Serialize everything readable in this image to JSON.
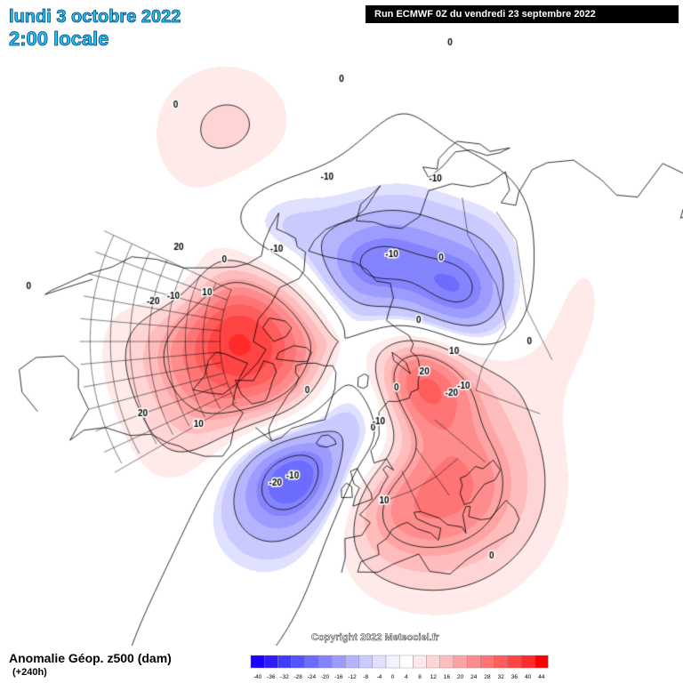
{
  "header": {
    "date": "lundi 3 octobre 2022",
    "local_time": "2:00 locale",
    "run": "Run ECMWF 0Z du vendredi 23 septembre 2022"
  },
  "footer": {
    "field": "Anomalie Géop. z500 (dam)",
    "lead_time": "(+240h)",
    "copyright": "Copyright 2022 Meteociel.fr"
  },
  "legend": {
    "ticks": [
      "-40",
      "-36",
      "-32",
      "-28",
      "-24",
      "-20",
      "-16",
      "-12",
      "-8",
      "-4",
      "0",
      "4",
      "8",
      "12",
      "16",
      "20",
      "24",
      "28",
      "32",
      "36",
      "40",
      "44"
    ],
    "colors": [
      "#1c00ff",
      "#2d1cff",
      "#3f3bff",
      "#5555ff",
      "#6c6cff",
      "#8484ff",
      "#9c9cff",
      "#b4b4ff",
      "#cacaff",
      "#e0e0ff",
      "#f3f3ff",
      "#ffffff",
      "#ffeaea",
      "#ffd4d4",
      "#ffbcbc",
      "#ffa4a4",
      "#ff8c8c",
      "#ff7474",
      "#ff5c5c",
      "#ff4444",
      "#ff2a2a",
      "#ff0000"
    ]
  },
  "contour_labels": [
    {
      "text": "-10",
      "lon": 205,
      "lat": 62
    },
    {
      "text": "0",
      "lon": 225,
      "lat": 55
    },
    {
      "text": "-10",
      "lon": 245,
      "lat": 48
    },
    {
      "text": "-20",
      "lon": 248,
      "lat": 44
    },
    {
      "text": "-10",
      "lon": 175,
      "lat": 50
    },
    {
      "text": "-10",
      "lon": 140,
      "lat": 45
    },
    {
      "text": "0",
      "lon": 120,
      "lat": 58
    },
    {
      "text": "0",
      "lon": 170,
      "lat": 30
    },
    {
      "text": "0",
      "lon": 80,
      "lat": 45
    },
    {
      "text": "10",
      "lon": 75,
      "lat": 62
    },
    {
      "text": "20",
      "lon": 60,
      "lat": 68
    },
    {
      "text": "0",
      "lon": 95,
      "lat": 70
    },
    {
      "text": "-10",
      "lon": 140,
      "lat": 65
    },
    {
      "text": "-10",
      "lon": 60,
      "lat": 58
    },
    {
      "text": "-20",
      "lon": 55,
      "lat": 60
    },
    {
      "text": "0",
      "lon": 40,
      "lat": 72
    },
    {
      "text": "0",
      "lon": 10,
      "lat": 67
    },
    {
      "text": "-10",
      "lon": 15,
      "lat": 68
    },
    {
      "text": "10",
      "lon": 5,
      "lat": 50
    },
    {
      "text": "0",
      "lon": 25,
      "lat": 30
    },
    {
      "text": "10",
      "lon": -70,
      "lat": 50
    },
    {
      "text": "20",
      "lon": -80,
      "lat": 40
    },
    {
      "text": "10",
      "lon": -120,
      "lat": 55
    },
    {
      "text": "20",
      "lon": -130,
      "lat": 45
    },
    {
      "text": "-10",
      "lon": -30,
      "lat": 55
    },
    {
      "text": "-20",
      "lon": -35,
      "lat": 52
    },
    {
      "text": "0",
      "lon": -45,
      "lat": 75
    },
    {
      "text": "0",
      "lon": -155,
      "lat": 25
    },
    {
      "text": "0",
      "lon": -110,
      "lat": 20
    },
    {
      "text": "0",
      "lon": 150,
      "lat": 20
    }
  ]
}
